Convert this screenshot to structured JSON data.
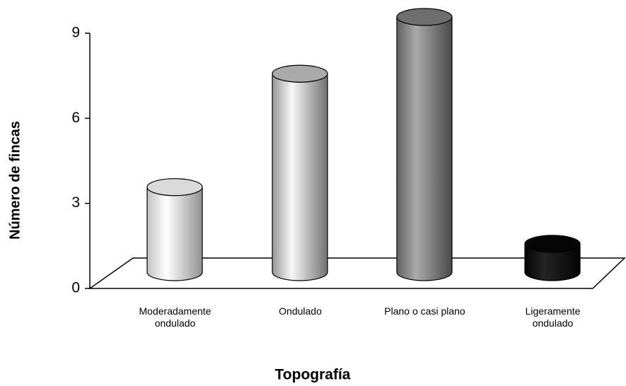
{
  "chart_data": {
    "type": "bar3d",
    "x_label": "Topografía",
    "y_label": "Número de fincas",
    "categories": [
      "Moderadamente ondulado",
      "Ondulado",
      "Plano o casi plano",
      "Ligeramente ondulado"
    ],
    "values": [
      3,
      7,
      9,
      1
    ],
    "colors": [
      "#f2f2f2",
      "#bdbdbd",
      "#7a7a7a",
      "#050505"
    ],
    "ylim": [
      0,
      9
    ],
    "yticks": [
      0,
      3,
      6,
      9
    ]
  }
}
